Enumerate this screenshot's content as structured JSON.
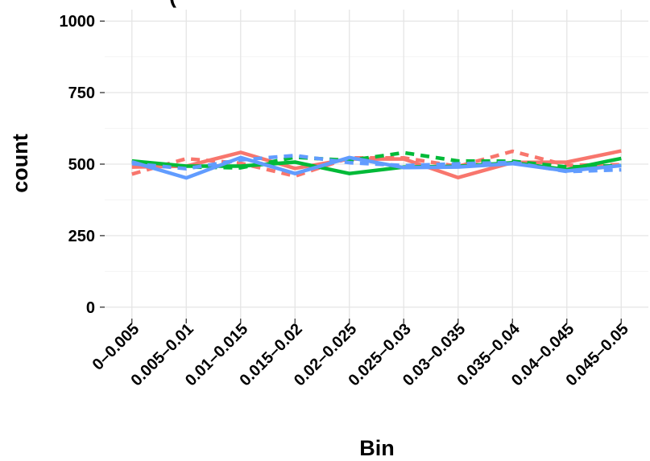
{
  "chart_data": {
    "type": "line",
    "title": "(",
    "xlabel": "Bin",
    "ylabel": "count",
    "categories": [
      "0–0.005",
      "0.005–0.01",
      "0.01–0.015",
      "0.015–0.02",
      "0.02–0.025",
      "0.025–0.03",
      "0.03–0.035",
      "0.035–0.04",
      "0.04–0.045",
      "0.045–0.05"
    ],
    "ylim": [
      -40,
      1040
    ],
    "yticks": [
      0,
      250,
      500,
      750,
      1000
    ],
    "grid": true,
    "legend": "none",
    "series": [
      {
        "color": "#F8766D",
        "dash": "solid",
        "values": [
          490,
          493,
          541,
          485,
          518,
          518,
          453,
          506,
          507,
          546
        ]
      },
      {
        "color": "#F8766D",
        "dash": "dashed",
        "values": [
          465,
          519,
          503,
          458,
          522,
          522,
          492,
          545,
          496,
          498
        ]
      },
      {
        "color": "#00BA38",
        "dash": "solid",
        "values": [
          511,
          493,
          493,
          507,
          467,
          490,
          492,
          505,
          481,
          520
        ]
      },
      {
        "color": "#00BA38",
        "dash": "dashed",
        "values": [
          510,
          490,
          487,
          524,
          513,
          540,
          511,
          510,
          490,
          495
        ]
      },
      {
        "color": "#619CFF",
        "dash": "solid",
        "values": [
          508,
          452,
          523,
          467,
          523,
          488,
          490,
          502,
          476,
          495
        ]
      },
      {
        "color": "#619CFF",
        "dash": "dashed",
        "values": [
          502,
          484,
          515,
          530,
          505,
          495,
          501,
          506,
          474,
          480
        ]
      }
    ]
  }
}
